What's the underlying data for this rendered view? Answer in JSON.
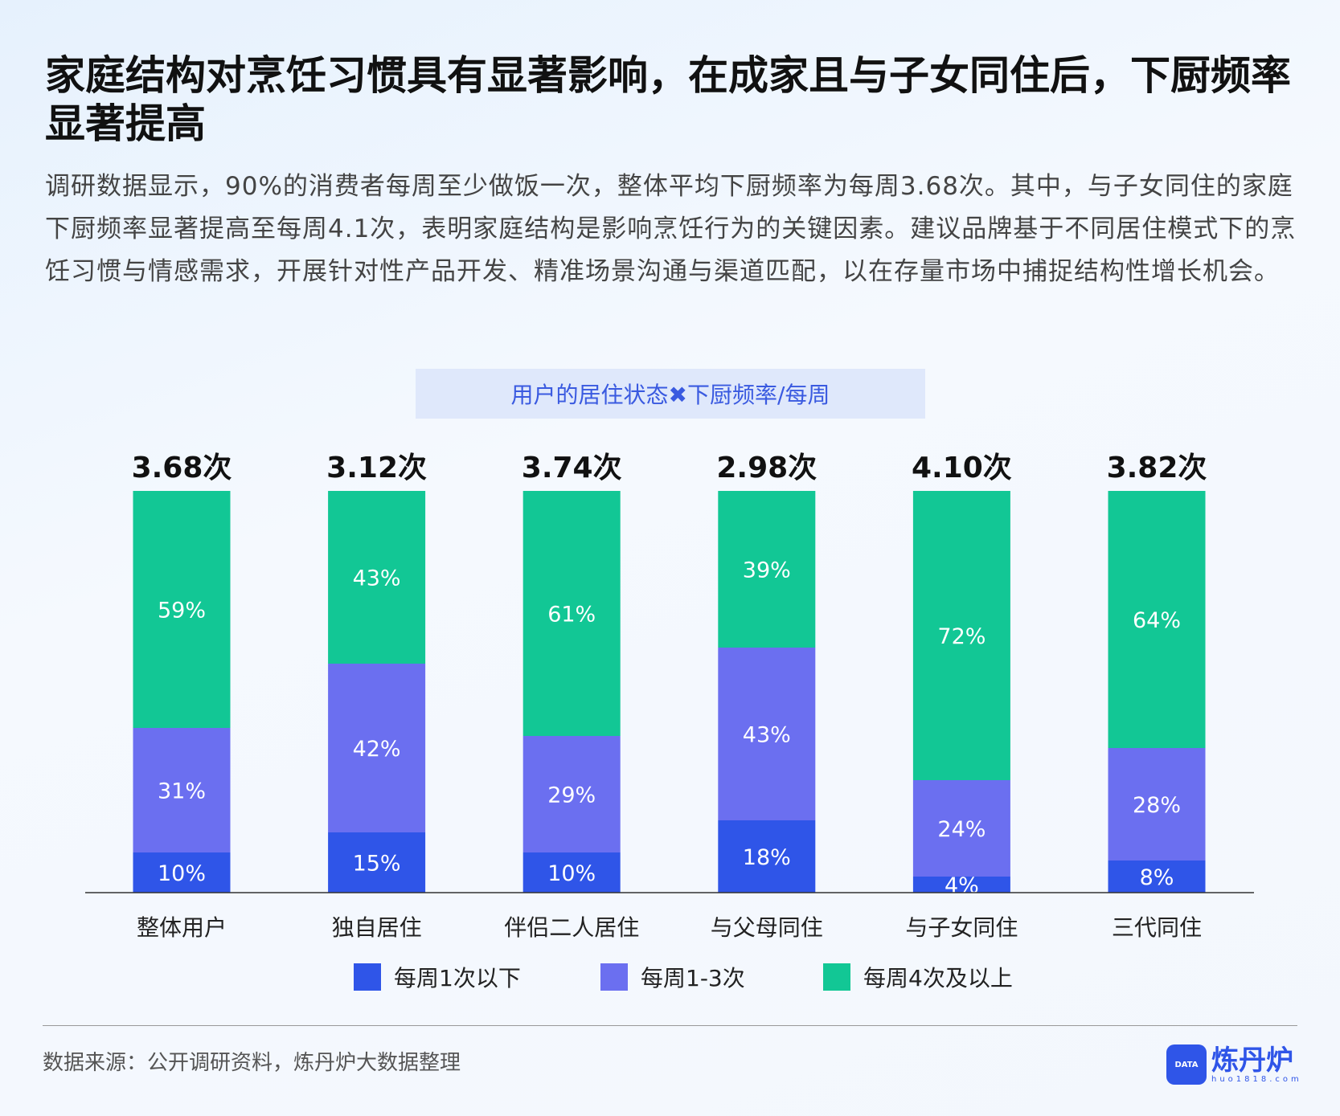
{
  "title": "家庭结构对烹饪习惯具有显著影响，在成家且与子女同住后，下厨频率显著提高",
  "paragraph": "调研数据显示，90%的消费者每周至少做饭一次，整体平均下厨频率为每周3.68次。其中，与子女同住的家庭下厨频率显著提高至每周4.1次，表明家庭结构是影响烹饪行为的关键因素。建议品牌基于不同居住模式下的烹饪习惯与情感需求，开展针对性产品开发、精准场景沟通与渠道匹配，以在存量市场中捕捉结构性增长机会。",
  "source": "数据来源：公开调研资料，炼丹炉大数据整理",
  "logo": {
    "name": "炼丹炉",
    "url": "huo1818.com",
    "badge": "DATA"
  },
  "chart_data": {
    "type": "bar",
    "stacked": true,
    "title": "用户的居住状态✖下厨频率/每周",
    "categories": [
      "整体用户",
      "独自居住",
      "伴侣二人居住",
      "与父母同住",
      "与子女同住",
      "三代同住"
    ],
    "totals": [
      "3.68次",
      "3.12次",
      "3.74次",
      "2.98次",
      "4.10次",
      "3.82次"
    ],
    "series": [
      {
        "name": "每周1次以下",
        "color": "#2f55e8",
        "values": [
          10,
          15,
          10,
          18,
          4,
          8
        ]
      },
      {
        "name": "每周1-3次",
        "color": "#6b6ff0",
        "values": [
          31,
          42,
          29,
          43,
          24,
          28
        ]
      },
      {
        "name": "每周4次及以上",
        "color": "#12c795",
        "values": [
          59,
          43,
          61,
          39,
          72,
          64
        ]
      }
    ],
    "unit": "%",
    "ylim": [
      0,
      100
    ],
    "legend": "bottom",
    "grid": false
  }
}
